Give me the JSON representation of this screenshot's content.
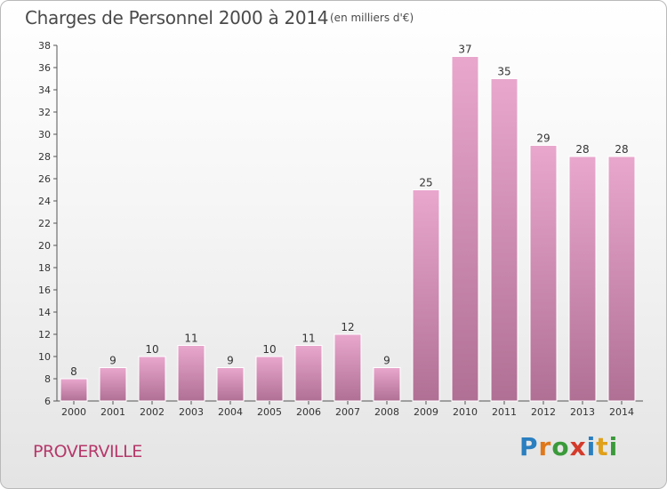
{
  "header": {
    "title": "Charges de Personnel 2000 à 2014",
    "subtitle": "(en milliers d'€)"
  },
  "footer": {
    "commune": "PROVERVILLE",
    "logo_text": "Proxiti"
  },
  "colors": {
    "bar_top": "#e9a7cd",
    "bar_bottom": "#b06f94",
    "axis": "#555555",
    "commune_text": "#b5386a"
  },
  "chart_data": {
    "type": "bar",
    "title": "Charges de Personnel 2000 à 2014",
    "subtitle": "(en milliers d'€)",
    "xlabel": "",
    "ylabel": "",
    "categories": [
      "2000",
      "2001",
      "2002",
      "2003",
      "2004",
      "2005",
      "2006",
      "2007",
      "2008",
      "2009",
      "2010",
      "2011",
      "2012",
      "2013",
      "2014"
    ],
    "values": [
      8,
      9,
      10,
      11,
      9,
      10,
      11,
      12,
      9,
      25,
      37,
      35,
      29,
      28,
      28
    ],
    "ylim": [
      6,
      38
    ],
    "yticks": [
      6,
      8,
      10,
      12,
      14,
      16,
      18,
      20,
      22,
      24,
      26,
      28,
      30,
      32,
      34,
      36,
      38
    ],
    "grid": false,
    "legend": "none",
    "data_labels": true
  }
}
